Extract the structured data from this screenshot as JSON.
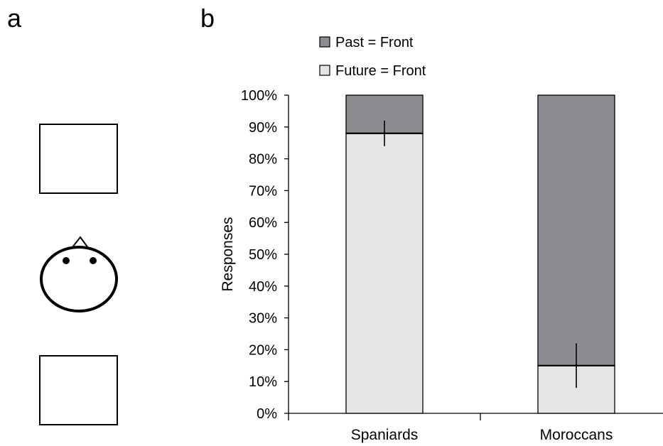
{
  "panels": {
    "a": "a",
    "b": "b"
  },
  "chart_data": {
    "type": "bar",
    "stacked": true,
    "categories": [
      "Spaniards",
      "Moroccans"
    ],
    "series": [
      {
        "name": "Future = Front",
        "values": [
          88,
          15
        ],
        "color": "#e4e5e6"
      },
      {
        "name": "Past = Front",
        "values": [
          12,
          85
        ],
        "color": "#8c8d90"
      }
    ],
    "error_bars": [
      {
        "category": "Spaniards",
        "center": 88,
        "low": 84,
        "high": 92
      },
      {
        "category": "Moroccans",
        "center": 15,
        "low": 8,
        "high": 22
      }
    ],
    "ylabel": "Responses",
    "xlabel": "",
    "ylim": [
      0,
      100
    ],
    "yticks": [
      0,
      10,
      20,
      30,
      40,
      50,
      60,
      70,
      80,
      90,
      100
    ],
    "ytick_labels": [
      "0%",
      "10%",
      "20%",
      "30%",
      "40%",
      "50%",
      "60%",
      "70%",
      "80%",
      "90%",
      "100%"
    ],
    "legend": {
      "placement": "top",
      "entries": [
        "Past = Front",
        "Future = Front"
      ]
    },
    "grid": false
  },
  "colors": {
    "axis": "#000000",
    "past": "#8c8d90",
    "future": "#e4e5e6"
  },
  "diagram_a": {
    "elements": [
      "top-square",
      "head-with-eyes-and-nose",
      "bottom-square"
    ]
  }
}
